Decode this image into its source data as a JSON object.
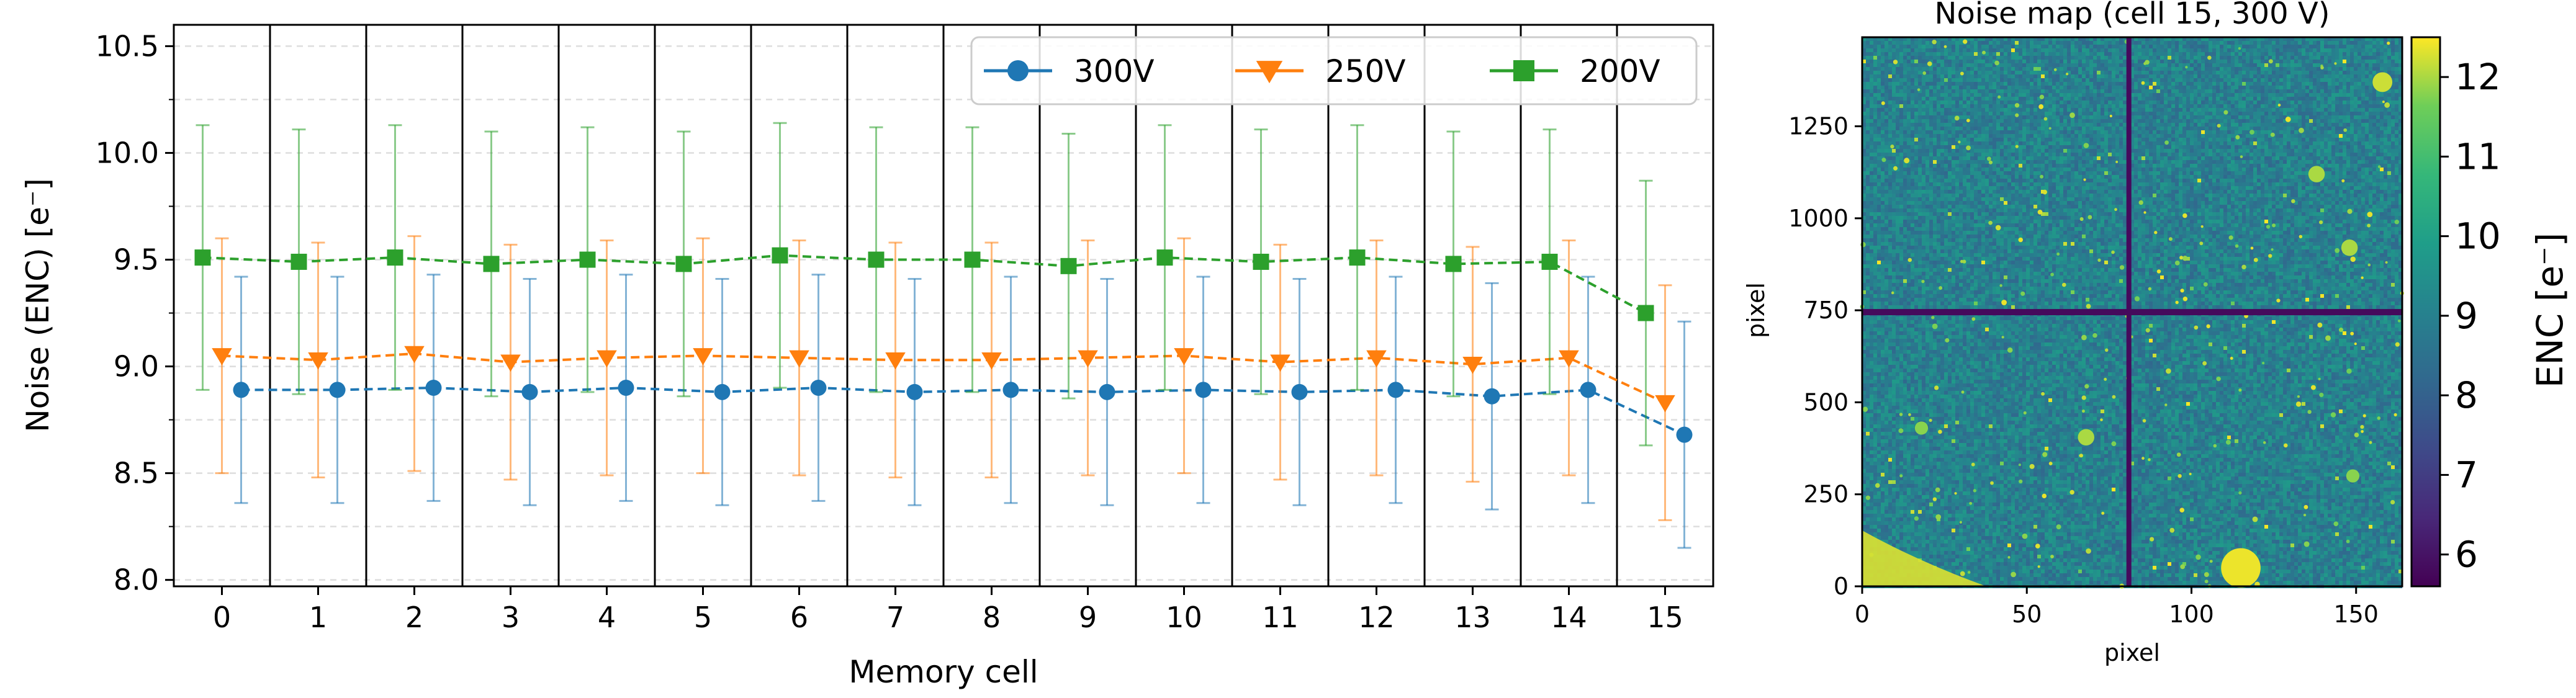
{
  "chart_data": [
    {
      "type": "line",
      "title": "",
      "xlabel": "Memory cell",
      "ylabel": "Noise (ENC) [e⁻]",
      "categories": [
        "0",
        "1",
        "2",
        "3",
        "4",
        "5",
        "6",
        "7",
        "8",
        "9",
        "10",
        "11",
        "12",
        "13",
        "14",
        "15"
      ],
      "x": [
        0,
        1,
        2,
        3,
        4,
        5,
        6,
        7,
        8,
        9,
        10,
        11,
        12,
        13,
        14,
        15
      ],
      "xlim": [
        -0.5,
        15.5
      ],
      "ylim": [
        7.97,
        10.6
      ],
      "yticks": [
        "8.0",
        "8.5",
        "9.0",
        "9.5",
        "10.0",
        "10.5"
      ],
      "ytick_values": [
        8.0,
        8.5,
        9.0,
        9.5,
        10.0,
        10.5
      ],
      "grid": true,
      "legend_position": "top-right",
      "series": [
        {
          "name": "300V",
          "color": "#1f77b4",
          "marker": "circle",
          "x_offset": 0.2,
          "values": [
            8.89,
            8.89,
            8.9,
            8.88,
            8.9,
            8.88,
            8.9,
            8.88,
            8.89,
            8.88,
            8.89,
            8.88,
            8.89,
            8.86,
            8.89,
            8.68
          ],
          "err_low": [
            8.36,
            8.36,
            8.37,
            8.35,
            8.37,
            8.35,
            8.37,
            8.35,
            8.36,
            8.35,
            8.36,
            8.35,
            8.36,
            8.33,
            8.36,
            8.15
          ],
          "err_high": [
            9.42,
            9.42,
            9.43,
            9.41,
            9.43,
            9.41,
            9.43,
            9.41,
            9.42,
            9.41,
            9.42,
            9.41,
            9.42,
            9.39,
            9.42,
            9.21
          ]
        },
        {
          "name": "250V",
          "color": "#ff7f0e",
          "marker": "triangle-down",
          "x_offset": 0.0,
          "values": [
            9.05,
            9.03,
            9.06,
            9.02,
            9.04,
            9.05,
            9.04,
            9.03,
            9.03,
            9.04,
            9.05,
            9.02,
            9.04,
            9.01,
            9.04,
            8.83
          ],
          "err_low": [
            8.5,
            8.48,
            8.51,
            8.47,
            8.49,
            8.5,
            8.49,
            8.48,
            8.48,
            8.49,
            8.5,
            8.47,
            8.49,
            8.46,
            8.49,
            8.28
          ],
          "err_high": [
            9.6,
            9.58,
            9.61,
            9.57,
            9.59,
            9.6,
            9.59,
            9.58,
            9.58,
            9.59,
            9.6,
            9.57,
            9.59,
            9.56,
            9.59,
            9.38
          ]
        },
        {
          "name": "200V",
          "color": "#2ca02c",
          "marker": "square",
          "x_offset": -0.2,
          "values": [
            9.51,
            9.49,
            9.51,
            9.48,
            9.5,
            9.48,
            9.52,
            9.5,
            9.5,
            9.47,
            9.51,
            9.49,
            9.51,
            9.48,
            9.49,
            9.25
          ],
          "err_low": [
            8.89,
            8.87,
            8.89,
            8.86,
            8.88,
            8.86,
            8.9,
            8.88,
            8.88,
            8.85,
            8.89,
            8.87,
            8.89,
            8.86,
            8.87,
            8.63
          ],
          "err_high": [
            10.13,
            10.11,
            10.13,
            10.1,
            10.12,
            10.1,
            10.14,
            10.12,
            10.12,
            10.09,
            10.13,
            10.11,
            10.13,
            10.1,
            10.11,
            9.87
          ]
        }
      ]
    },
    {
      "type": "heatmap",
      "title": "Noise map (cell 15, 300 V)",
      "xlabel": "pixel",
      "ylabel": "pixel",
      "xlim": [
        0,
        164
      ],
      "ylim": [
        0,
        1492
      ],
      "xticks": [
        "0",
        "50",
        "100",
        "150"
      ],
      "xtick_values": [
        0,
        50,
        100,
        150
      ],
      "yticks": [
        "0",
        "250",
        "500",
        "750",
        "1000",
        "1250"
      ],
      "ytick_values": [
        0,
        250,
        500,
        750,
        1000,
        1250
      ],
      "colormap": "viridis",
      "colorbar_label": "ENC [e⁻]",
      "colorbar_range": [
        5.6,
        12.5
      ],
      "colorbar_ticks": [
        "6",
        "7",
        "8",
        "9",
        "10",
        "11",
        "12"
      ],
      "colorbar_tick_values": [
        6,
        7,
        8,
        9,
        10,
        11,
        12
      ],
      "typical_value": 9.0,
      "boundary_lines": {
        "x": 81,
        "y": 745,
        "value": 5.8
      },
      "hotspots": [
        {
          "x": 115,
          "y": 50,
          "r": 6,
          "value": 12.4
        },
        {
          "x": 68,
          "y": 405,
          "r": 2.5,
          "value": 12.0
        },
        {
          "x": 138,
          "y": 1120,
          "r": 2.5,
          "value": 12.0
        },
        {
          "x": 148,
          "y": 920,
          "r": 2.5,
          "value": 12.0
        },
        {
          "x": 158,
          "y": 1370,
          "r": 3,
          "value": 12.2
        },
        {
          "x": 18,
          "y": 430,
          "r": 2,
          "value": 11.8
        },
        {
          "x": 149,
          "y": 300,
          "r": 2,
          "value": 11.8
        }
      ],
      "corner_feature": {
        "corner": "bottom-left",
        "value": 12.3
      }
    }
  ]
}
